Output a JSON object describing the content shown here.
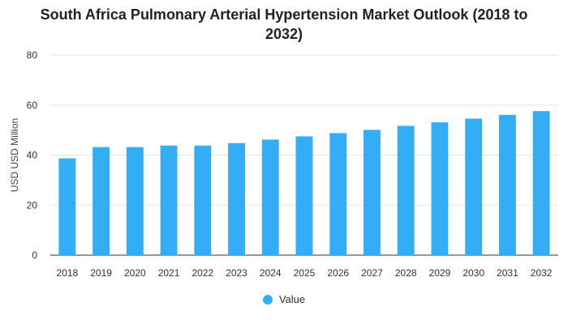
{
  "chart_data": {
    "type": "bar",
    "title": "South Africa Pulmonary Arterial Hypertension Market Outlook (2018 to 2032)",
    "xlabel": "",
    "ylabel": "USD USD Million",
    "categories": [
      "2018",
      "2019",
      "2020",
      "2021",
      "2022",
      "2023",
      "2024",
      "2025",
      "2026",
      "2027",
      "2028",
      "2029",
      "2030",
      "2031",
      "2032"
    ],
    "series": [
      {
        "name": "Value",
        "color": "#33aef6",
        "values": [
          38.7,
          43.2,
          43.2,
          43.8,
          43.8,
          44.8,
          46.2,
          47.5,
          48.8,
          50.1,
          51.7,
          53.1,
          54.6,
          56.1,
          57.6
        ]
      }
    ],
    "ylim": [
      0,
      80
    ],
    "yticks": [
      0,
      20,
      40,
      60,
      80
    ],
    "grid": true,
    "legend_position": "bottom-center"
  }
}
